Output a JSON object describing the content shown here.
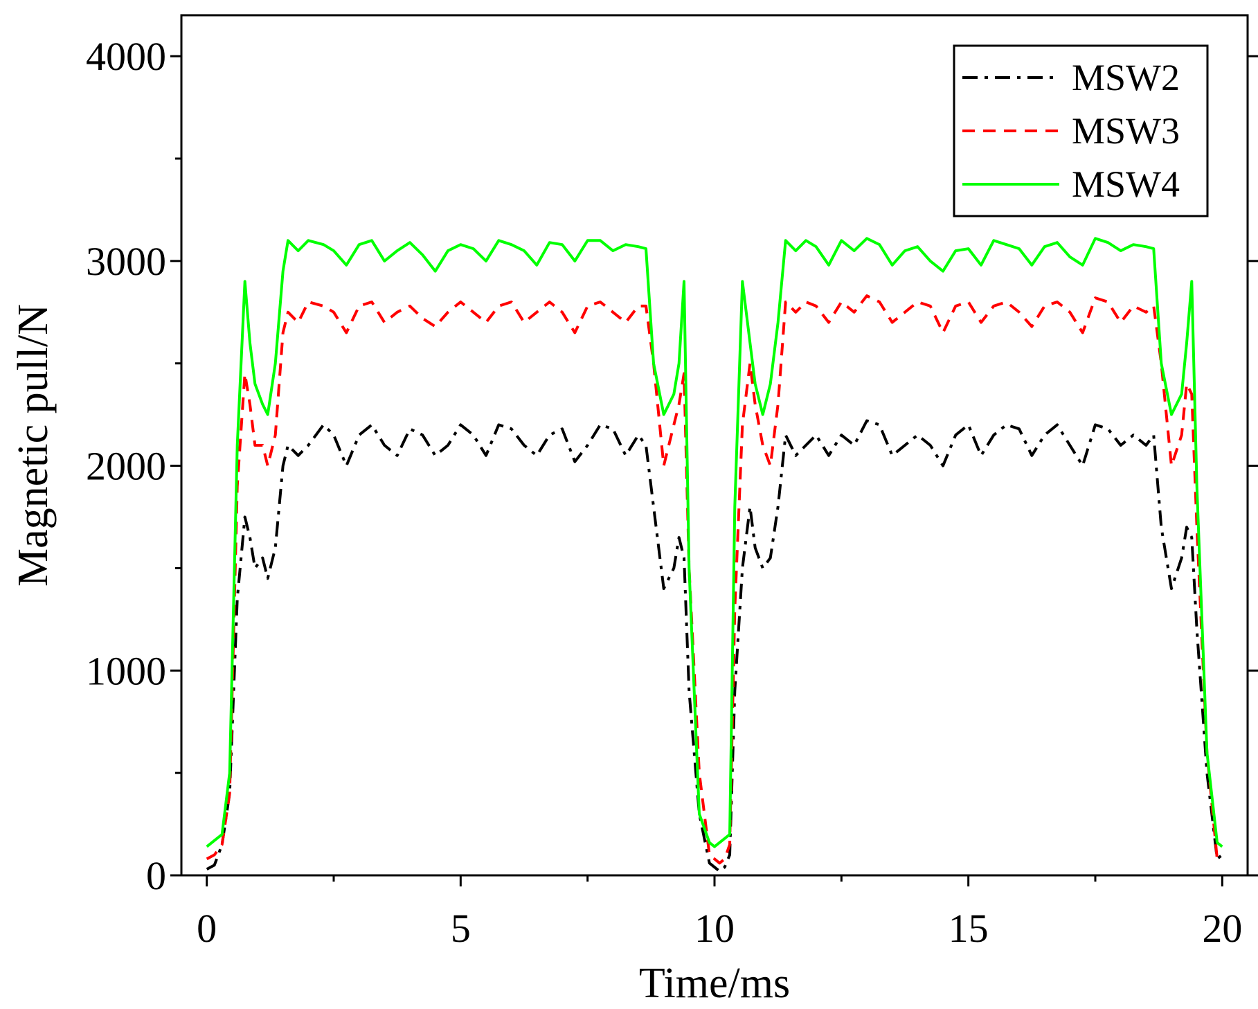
{
  "chart_data": {
    "type": "line",
    "title": "",
    "xlabel": "Time/ms",
    "ylabel": "Magnetic pull/N",
    "xlim": [
      -0.5,
      20.5
    ],
    "ylim": [
      0,
      4200
    ],
    "xticks": [
      0,
      5,
      10,
      15,
      20
    ],
    "xtick_labels": [
      "0",
      "5",
      "10",
      "15",
      "20"
    ],
    "yticks": [
      0,
      1000,
      2000,
      3000,
      4000
    ],
    "ytick_labels": [
      "0",
      "1000",
      "2000",
      "3000",
      "4000"
    ],
    "legend_position": "top-right",
    "grid": false,
    "series": [
      {
        "name": "MSW2",
        "color": "#000000",
        "dash": "dashdot",
        "x": [
          0,
          0.15,
          0.3,
          0.45,
          0.6,
          0.75,
          0.85,
          0.95,
          1.1,
          1.2,
          1.35,
          1.5,
          1.6,
          1.8,
          2.0,
          2.3,
          2.5,
          2.75,
          3.0,
          3.25,
          3.5,
          3.75,
          4.0,
          4.25,
          4.5,
          4.75,
          5.0,
          5.25,
          5.5,
          5.75,
          6.0,
          6.25,
          6.5,
          6.75,
          7.0,
          7.25,
          7.5,
          7.75,
          8.0,
          8.25,
          8.5,
          8.65,
          8.8,
          9.0,
          9.2,
          9.3,
          9.4,
          9.5,
          9.7,
          9.9,
          10.0,
          10.1,
          10.2,
          10.3,
          10.4,
          10.55,
          10.7,
          10.8,
          10.95,
          11.1,
          11.25,
          11.4,
          11.6,
          11.8,
          12.0,
          12.25,
          12.5,
          12.75,
          13.0,
          13.25,
          13.5,
          13.75,
          14.0,
          14.25,
          14.5,
          14.75,
          15.0,
          15.25,
          15.5,
          15.75,
          16.0,
          16.25,
          16.5,
          16.75,
          17.0,
          17.25,
          17.5,
          17.75,
          18.0,
          18.25,
          18.5,
          18.65,
          18.8,
          19.0,
          19.2,
          19.3,
          19.4,
          19.5,
          19.7,
          19.9,
          20.0
        ],
        "values": [
          30,
          50,
          150,
          400,
          1350,
          1750,
          1650,
          1500,
          1550,
          1450,
          1600,
          2000,
          2100,
          2050,
          2100,
          2200,
          2150,
          2000,
          2150,
          2200,
          2100,
          2050,
          2180,
          2150,
          2050,
          2100,
          2200,
          2150,
          2050,
          2200,
          2180,
          2100,
          2050,
          2150,
          2180,
          2020,
          2100,
          2200,
          2180,
          2050,
          2150,
          2100,
          1800,
          1400,
          1500,
          1650,
          1550,
          900,
          300,
          60,
          40,
          20,
          40,
          100,
          900,
          1500,
          1800,
          1600,
          1500,
          1550,
          1800,
          2150,
          2050,
          2100,
          2150,
          2050,
          2150,
          2100,
          2220,
          2200,
          2050,
          2100,
          2150,
          2100,
          2000,
          2150,
          2200,
          2050,
          2150,
          2200,
          2180,
          2050,
          2150,
          2200,
          2100,
          2000,
          2200,
          2180,
          2100,
          2150,
          2100,
          2150,
          1700,
          1400,
          1550,
          1700,
          1650,
          1200,
          500,
          80,
          100
        ]
      },
      {
        "name": "MSW3",
        "color": "#ff0000",
        "dash": "dashed",
        "x": [
          0,
          0.15,
          0.3,
          0.45,
          0.6,
          0.75,
          0.85,
          0.95,
          1.1,
          1.2,
          1.35,
          1.5,
          1.6,
          1.8,
          2.0,
          2.3,
          2.5,
          2.75,
          3.0,
          3.25,
          3.5,
          3.75,
          4.0,
          4.25,
          4.5,
          4.75,
          5.0,
          5.25,
          5.5,
          5.75,
          6.0,
          6.25,
          6.5,
          6.75,
          7.0,
          7.25,
          7.5,
          7.75,
          8.0,
          8.25,
          8.5,
          8.65,
          8.8,
          9.0,
          9.2,
          9.3,
          9.4,
          9.5,
          9.7,
          9.9,
          10.0,
          10.1,
          10.2,
          10.3,
          10.4,
          10.55,
          10.7,
          10.8,
          10.95,
          11.1,
          11.25,
          11.4,
          11.6,
          11.8,
          12.0,
          12.25,
          12.5,
          12.75,
          13.0,
          13.25,
          13.5,
          13.75,
          14.0,
          14.25,
          14.5,
          14.75,
          15.0,
          15.25,
          15.5,
          15.75,
          16.0,
          16.25,
          16.5,
          16.75,
          17.0,
          17.25,
          17.5,
          17.75,
          18.0,
          18.25,
          18.5,
          18.65,
          18.8,
          19.0,
          19.2,
          19.3,
          19.4,
          19.5,
          19.7,
          19.9,
          20.0
        ],
        "values": [
          80,
          100,
          150,
          400,
          1900,
          2450,
          2300,
          2100,
          2100,
          2000,
          2150,
          2650,
          2750,
          2700,
          2800,
          2780,
          2750,
          2650,
          2780,
          2800,
          2700,
          2750,
          2780,
          2720,
          2680,
          2750,
          2800,
          2750,
          2700,
          2780,
          2800,
          2700,
          2750,
          2800,
          2750,
          2650,
          2780,
          2800,
          2750,
          2700,
          2780,
          2780,
          2500,
          2000,
          2200,
          2300,
          2450,
          1500,
          500,
          100,
          80,
          60,
          80,
          150,
          1300,
          2200,
          2500,
          2300,
          2100,
          2000,
          2300,
          2800,
          2750,
          2800,
          2780,
          2700,
          2800,
          2750,
          2830,
          2800,
          2700,
          2750,
          2800,
          2780,
          2650,
          2780,
          2800,
          2700,
          2780,
          2800,
          2750,
          2680,
          2780,
          2800,
          2750,
          2650,
          2820,
          2800,
          2700,
          2780,
          2750,
          2780,
          2500,
          2000,
          2150,
          2400,
          2350,
          1700,
          600,
          80,
          80
        ]
      },
      {
        "name": "MSW4",
        "color": "#00ff00",
        "dash": "solid",
        "x": [
          0,
          0.15,
          0.3,
          0.45,
          0.6,
          0.75,
          0.85,
          0.95,
          1.1,
          1.2,
          1.35,
          1.5,
          1.6,
          1.8,
          2.0,
          2.3,
          2.5,
          2.75,
          3.0,
          3.25,
          3.5,
          3.75,
          4.0,
          4.25,
          4.5,
          4.75,
          5.0,
          5.25,
          5.5,
          5.75,
          6.0,
          6.25,
          6.5,
          6.75,
          7.0,
          7.25,
          7.5,
          7.75,
          8.0,
          8.25,
          8.5,
          8.65,
          8.8,
          9.0,
          9.2,
          9.3,
          9.4,
          9.5,
          9.7,
          9.9,
          10.0,
          10.1,
          10.2,
          10.3,
          10.4,
          10.55,
          10.7,
          10.8,
          10.95,
          11.1,
          11.25,
          11.4,
          11.6,
          11.8,
          12.0,
          12.25,
          12.5,
          12.75,
          13.0,
          13.25,
          13.5,
          13.75,
          14.0,
          14.25,
          14.5,
          14.75,
          15.0,
          15.25,
          15.5,
          15.75,
          16.0,
          16.25,
          16.5,
          16.75,
          17.0,
          17.25,
          17.5,
          17.75,
          18.0,
          18.25,
          18.5,
          18.65,
          18.8,
          19.0,
          19.2,
          19.3,
          19.4,
          19.5,
          19.7,
          19.9,
          20.0
        ],
        "values": [
          140,
          170,
          200,
          500,
          2100,
          2900,
          2600,
          2400,
          2300,
          2250,
          2500,
          2950,
          3100,
          3050,
          3100,
          3080,
          3050,
          2980,
          3080,
          3100,
          3000,
          3050,
          3090,
          3030,
          2950,
          3050,
          3080,
          3060,
          3000,
          3100,
          3080,
          3050,
          2980,
          3090,
          3080,
          3000,
          3100,
          3100,
          3050,
          3080,
          3070,
          3060,
          2500,
          2250,
          2350,
          2500,
          2900,
          1500,
          300,
          160,
          140,
          160,
          180,
          200,
          1800,
          2900,
          2600,
          2400,
          2250,
          2400,
          2700,
          3100,
          3050,
          3100,
          3070,
          2980,
          3100,
          3050,
          3110,
          3080,
          2980,
          3050,
          3070,
          3000,
          2950,
          3050,
          3060,
          2980,
          3100,
          3080,
          3060,
          2980,
          3070,
          3090,
          3020,
          2980,
          3110,
          3090,
          3050,
          3080,
          3070,
          3060,
          2500,
          2250,
          2350,
          2600,
          2900,
          1900,
          600,
          160,
          140
        ]
      }
    ]
  }
}
